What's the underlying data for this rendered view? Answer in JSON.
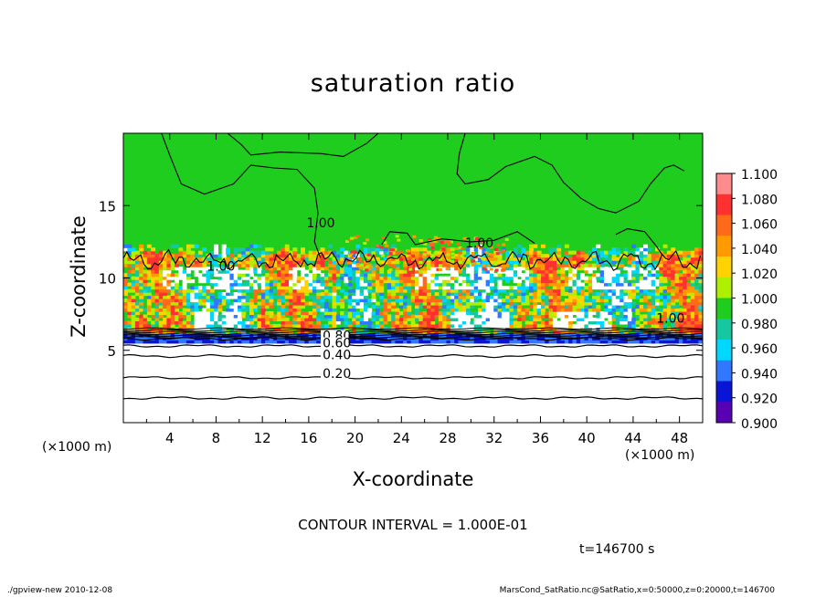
{
  "chart_data": {
    "type": "heatmap",
    "title": "saturation ratio",
    "xlabel": "X-coordinate",
    "ylabel": "Z-coordinate",
    "x_unit": "(×1000 m)",
    "y_unit": "(×1000 m)",
    "xlim": [
      0,
      50
    ],
    "ylim": [
      0,
      20
    ],
    "x_ticks": [
      4,
      8,
      12,
      16,
      20,
      24,
      28,
      32,
      36,
      40,
      44,
      48
    ],
    "y_ticks": [
      5,
      10,
      15
    ],
    "colorbar": {
      "levels": [
        "1.100",
        "1.080",
        "1.060",
        "1.040",
        "1.020",
        "1.000",
        "0.980",
        "0.960",
        "0.940",
        "0.920",
        "0.900"
      ],
      "colors": [
        "#ff8c8c",
        "#ff3030",
        "#ff6a1a",
        "#ff9a00",
        "#ffd200",
        "#aef000",
        "#1ecd1e",
        "#16c8a0",
        "#00d8ff",
        "#2f78ff",
        "#0a14d6",
        "#5a00b4"
      ]
    },
    "contour_labels": [
      {
        "text": "1.00",
        "x": 15.8,
        "y": 13.5
      },
      {
        "text": "1.00",
        "x": 29.5,
        "y": 12.1
      },
      {
        "text": "1.00",
        "x": 7.2,
        "y": 10.5
      },
      {
        "text": "1.00",
        "x": 46.0,
        "y": 6.9
      },
      {
        "text": "0.80",
        "x": 17.2,
        "y": 5.7
      },
      {
        "text": "0.60",
        "x": 17.2,
        "y": 5.2
      },
      {
        "text": "0.40",
        "x": 17.2,
        "y": 4.4
      },
      {
        "text": "0.20",
        "x": 17.2,
        "y": 3.1
      }
    ],
    "lower_contours": [
      {
        "value": 0.2,
        "z": 3.1
      },
      {
        "value": 0.4,
        "z": 4.6
      },
      {
        "value": 0.6,
        "z": 5.3
      },
      {
        "value": 0.8,
        "z": 5.8
      },
      {
        "value": 0.1,
        "z": 1.7
      }
    ],
    "cloud_layer_z": [
      5.5,
      11.5
    ],
    "background_value": 1.0
  },
  "contour_interval": "CONTOUR INTERVAL = 1.000E-01",
  "time_label": "t=146700 s",
  "footer_left": "./gpview-new   2010-12-08",
  "footer_right": "MarsCond_SatRatio.nc@SatRatio,x=0:50000,z=0:20000,t=146700"
}
